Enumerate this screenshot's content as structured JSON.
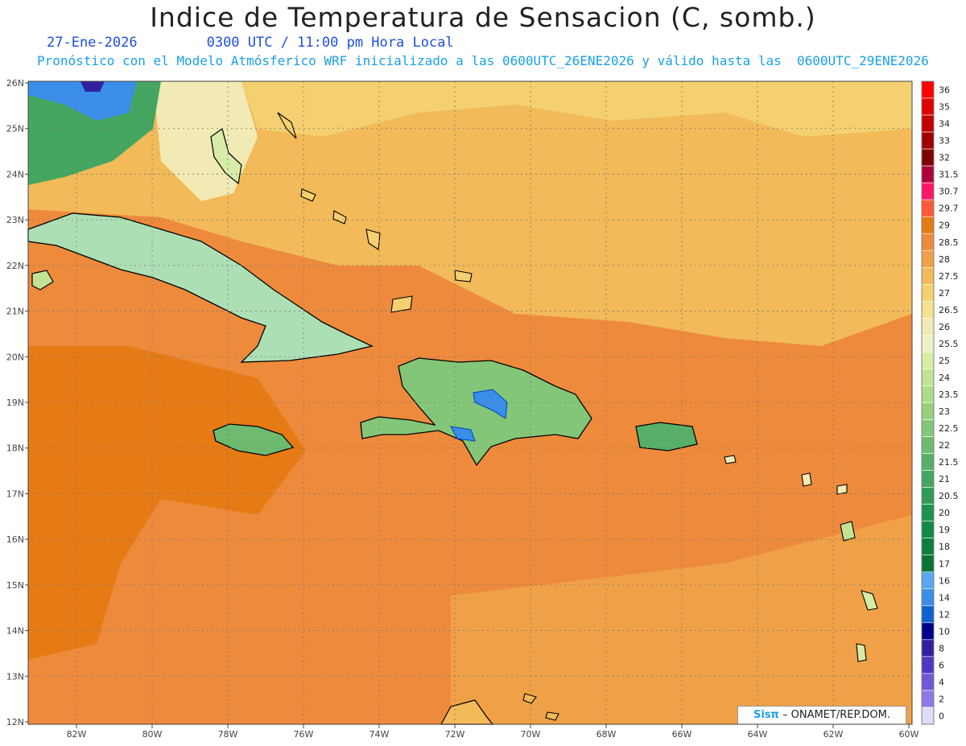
{
  "header": {
    "title": "Indice de Temperatura de Sensacion (C, somb.)",
    "date": "27-Ene-2026",
    "time": "0300 UTC / 11:00 pm Hora Local",
    "forecast": "Pronóstico con el Modelo Atmósferico WRF inicializado a las 0600UTC_26ENE2026 y válido hasta las  0600UTC_29ENE2026"
  },
  "map": {
    "lat_labels": [
      "26N",
      "25N",
      "24N",
      "23N",
      "22N",
      "21N",
      "20N",
      "19N",
      "18N",
      "17N",
      "16N",
      "15N",
      "14N",
      "13N",
      "12N"
    ],
    "lon_labels": [
      "82W",
      "80W",
      "78W",
      "76W",
      "74W",
      "72W",
      "70W",
      "68W",
      "66W",
      "64W",
      "62W",
      "60W"
    ],
    "ocean_color": "#ee8a3c",
    "coast_color": "#000000"
  },
  "colorbar": {
    "labels": [
      "36",
      "35",
      "34",
      "33",
      "32",
      "31.5",
      "30.7",
      "29.7",
      "29",
      "28.5",
      "28",
      "27.5",
      "27",
      "26.5",
      "26",
      "25.5",
      "25",
      "24",
      "23.5",
      "23",
      "22.5",
      "22",
      "21.5",
      "21",
      "20.5",
      "20",
      "19",
      "18",
      "17",
      "16",
      "14",
      "12",
      "10",
      "8",
      "6",
      "4",
      "2",
      "0"
    ],
    "colors": [
      "#ff0000",
      "#e00000",
      "#c00000",
      "#a00000",
      "#800000",
      "#b0003a",
      "#ff1868",
      "#ff5a3a",
      "#e67a14",
      "#ee8a3c",
      "#f0a046",
      "#f2ba58",
      "#f4d070",
      "#f3e090",
      "#f1eab4",
      "#ecf0c4",
      "#d8eca8",
      "#c2e394",
      "#aedb88",
      "#98d080",
      "#84c678",
      "#6ebb70",
      "#58b068",
      "#44a660",
      "#309c58",
      "#1e9250",
      "#138848",
      "#0e7e40",
      "#0a7436",
      "#58a8f0",
      "#3a8ee8",
      "#1060d0",
      "#00008c",
      "#3020a0",
      "#5038c0",
      "#7058d8",
      "#9078e8",
      "#dcdcf4"
    ]
  },
  "footer": {
    "brand": "Sisπ",
    "org": " – ONAMET/REP.DOM."
  }
}
